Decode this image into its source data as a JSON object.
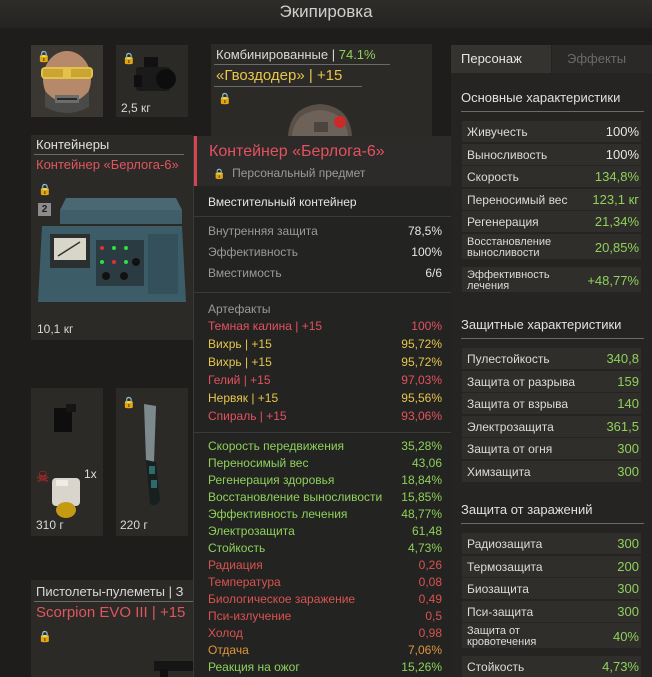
{
  "page_title": "Экипировка",
  "colors": {
    "red": "#e4525e",
    "green": "#8fd15a",
    "yellow": "#e7c64a",
    "orange": "#e0963a",
    "white": "#e6e6e6"
  },
  "slots": {
    "gear_weight": "2,5 кг",
    "container_weight": "10,1 кг",
    "slot_left_weight": "310 г",
    "slot_left_count": "1x",
    "slot_right_weight": "220 г"
  },
  "weapon": {
    "category": "Комбинированные | ",
    "percent": "74.1%",
    "name": "«Гвоздодер» | +15"
  },
  "container_card": {
    "heading": "Контейнеры",
    "name": "Контейнер «Берлога-6»",
    "badge": "2"
  },
  "pistols": {
    "category": "Пистолеты-пулеметы | З",
    "name": "Scorpion EVO III | +15"
  },
  "tooltip": {
    "title": "Контейнер «Берлога-6»",
    "subtitle": "Персональный предмет",
    "description": "Вместительный контейнер",
    "props": [
      {
        "label": "Внутренняя защита",
        "value": "78,5%"
      },
      {
        "label": "Эффективность",
        "value": "100%"
      },
      {
        "label": "Вместимость",
        "value": "6/6"
      }
    ],
    "artifacts_heading": "Артефакты",
    "artifacts": [
      {
        "label": "Темная калина | +15",
        "value": "100%",
        "color": "#e4525e"
      },
      {
        "label": "Вихрь | +15",
        "value": "95,72%",
        "color": "#e7c64a"
      },
      {
        "label": "Вихрь | +15",
        "value": "95,72%",
        "color": "#e7c64a"
      },
      {
        "label": "Гелий | +15",
        "value": "97,03%",
        "color": "#e4525e"
      },
      {
        "label": "Нервяк | +15",
        "value": "95,56%",
        "color": "#e7c64a"
      },
      {
        "label": "Спираль | +15",
        "value": "93,06%",
        "color": "#e4525e"
      }
    ],
    "stats": [
      {
        "label": "Скорость передвижения",
        "value": "35,28%",
        "color": "#8fd15a"
      },
      {
        "label": "Переносимый вес",
        "value": "43,06",
        "color": "#8fd15a"
      },
      {
        "label": "Регенерация здоровья",
        "value": "18,84%",
        "color": "#8fd15a"
      },
      {
        "label": "Восстановление выносливости",
        "value": "15,85%",
        "color": "#8fd15a"
      },
      {
        "label": "Эффективность лечения",
        "value": "48,77%",
        "color": "#8fd15a"
      },
      {
        "label": "Электрозащита",
        "value": "61,48",
        "color": "#8fd15a"
      },
      {
        "label": "Стойкость",
        "value": "4,73%",
        "color": "#8fd15a"
      },
      {
        "label": "Радиация",
        "value": "0,26",
        "color": "#d9534f"
      },
      {
        "label": "Температура",
        "value": "0,08",
        "color": "#d9534f"
      },
      {
        "label": "Биологическое заражение",
        "value": "0,49",
        "color": "#d9534f"
      },
      {
        "label": "Пси-излучение",
        "value": "0,5",
        "color": "#d9534f"
      },
      {
        "label": "Холод",
        "value": "0,98",
        "color": "#d9534f"
      },
      {
        "label": "Отдача",
        "value": "7,06%",
        "color": "#e0963a"
      },
      {
        "label": "Реакция на ожог",
        "value": "15,26%",
        "color": "#8fd15a"
      }
    ]
  },
  "right_panel": {
    "tabs": [
      {
        "label": "Персонаж",
        "active": true
      },
      {
        "label": "Эффекты",
        "active": false
      }
    ],
    "sections": [
      {
        "title": "Основные характеристики",
        "rows": [
          {
            "label": "Живучесть",
            "value": "100%",
            "color": "#e6e6e6"
          },
          {
            "label": "Выносливость",
            "value": "100%",
            "color": "#e6e6e6"
          },
          {
            "label": "Скорость",
            "value": "134,8%",
            "color": "#8fd15a"
          },
          {
            "label": "Переносимый вес",
            "value": "123,1 кг",
            "color": "#8fd15a"
          },
          {
            "label": "Регенерация",
            "value": "21,34%",
            "color": "#8fd15a"
          },
          {
            "label": "Восстановление выносливости",
            "value": "20,85%",
            "color": "#8fd15a",
            "tall": true
          },
          {
            "label": "Эффективность лечения",
            "value": "+48,77%",
            "color": "#8fd15a",
            "tall": true
          }
        ]
      },
      {
        "title": "Защитные характеристики",
        "rows": [
          {
            "label": "Пулестойкость",
            "value": "340,8",
            "color": "#8fd15a"
          },
          {
            "label": "Защита от разрыва",
            "value": "159",
            "color": "#8fd15a"
          },
          {
            "label": "Защита от взрыва",
            "value": "140",
            "color": "#8fd15a"
          },
          {
            "label": "Электрозащита",
            "value": "361,5",
            "color": "#8fd15a"
          },
          {
            "label": "Защита от огня",
            "value": "300",
            "color": "#8fd15a"
          },
          {
            "label": "Химзащита",
            "value": "300",
            "color": "#8fd15a"
          }
        ]
      },
      {
        "title": "Защита от заражений",
        "rows": [
          {
            "label": "Радиозащита",
            "value": "300",
            "color": "#8fd15a"
          },
          {
            "label": "Термозащита",
            "value": "200",
            "color": "#8fd15a"
          },
          {
            "label": "Биозащита",
            "value": "300",
            "color": "#8fd15a"
          },
          {
            "label": "Пси-защита",
            "value": "300",
            "color": "#8fd15a"
          },
          {
            "label": "Защита от кровотечения",
            "value": "40%",
            "color": "#8fd15a",
            "tall": true
          },
          {
            "label": "Стойкость",
            "value": "4,73%",
            "color": "#8fd15a"
          }
        ]
      }
    ]
  }
}
